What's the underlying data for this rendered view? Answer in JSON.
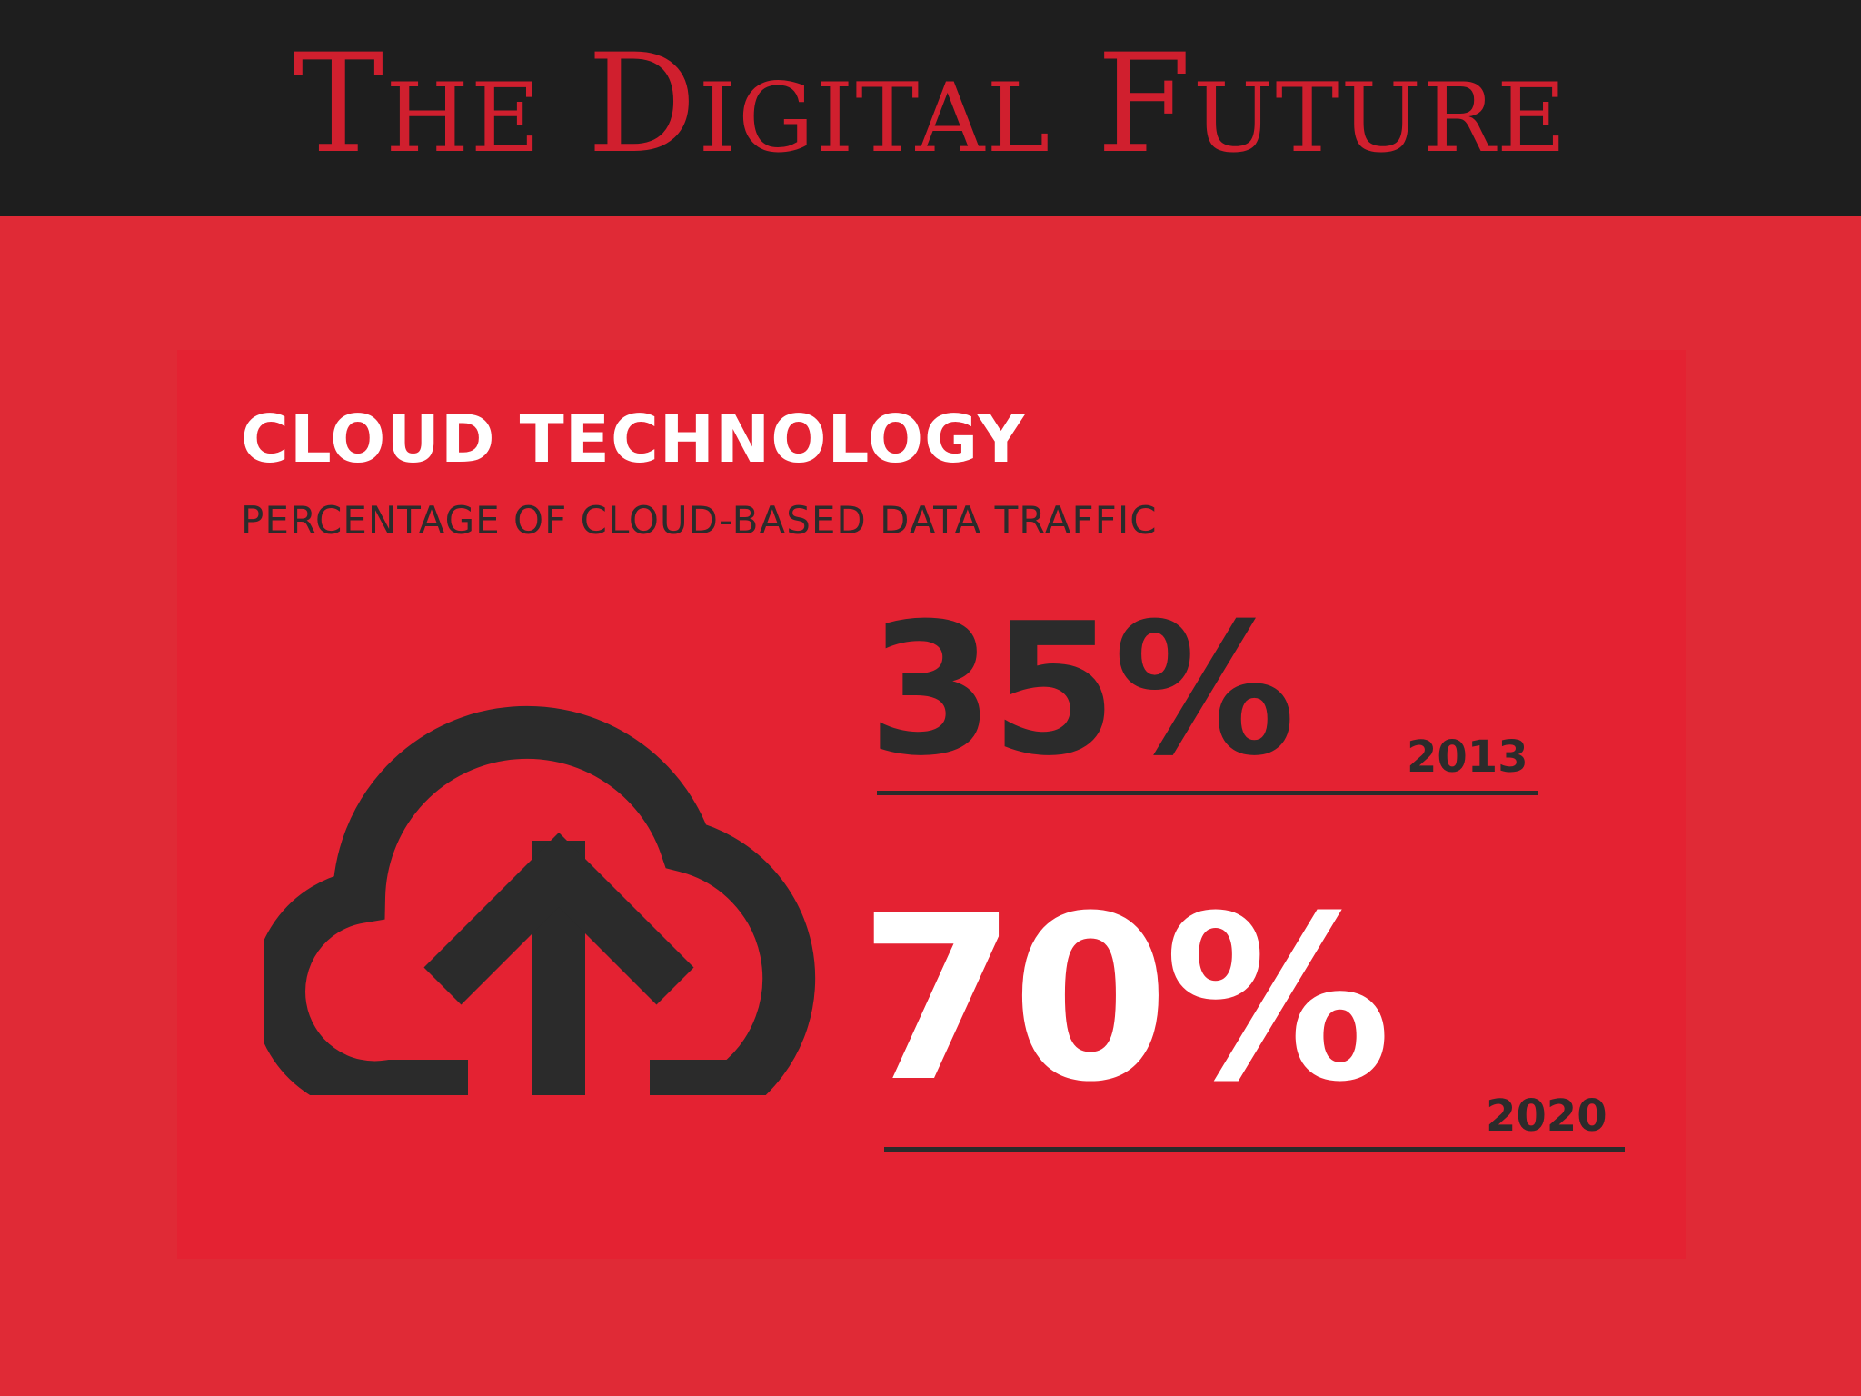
{
  "banner": {
    "title": "The Digital Future"
  },
  "infographic": {
    "title": "CLOUD TECHNOLOGY",
    "subtitle": "PERCENTAGE OF CLOUD-BASED DATA TRAFFIC",
    "icon": "cloud-upload-icon",
    "stats": [
      {
        "value": "35%",
        "year": "2013"
      },
      {
        "value": "70%",
        "year": "2020"
      }
    ]
  },
  "colors": {
    "background": "#e02a36",
    "banner": "#1e1e1e",
    "banner_text": "#d01f2e",
    "dark_text": "#2b2b2b",
    "light_text": "#ffffff"
  }
}
